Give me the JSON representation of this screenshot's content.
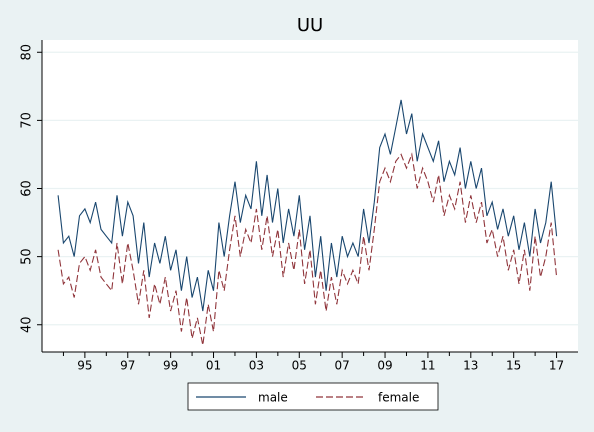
{
  "chart_data": {
    "type": "line",
    "title": "UU",
    "x": [
      1993.75,
      1994,
      1994.25,
      1994.5,
      1994.75,
      1995,
      1995.25,
      1995.5,
      1995.75,
      1996,
      1996.25,
      1996.5,
      1996.75,
      1997,
      1997.25,
      1997.5,
      1997.75,
      1998,
      1998.25,
      1998.5,
      1998.75,
      1999,
      1999.25,
      1999.5,
      1999.75,
      2000,
      2000.25,
      2000.5,
      2000.75,
      2001,
      2001.25,
      2001.5,
      2001.75,
      2002,
      2002.25,
      2002.5,
      2002.75,
      2003,
      2003.25,
      2003.5,
      2003.75,
      2004,
      2004.25,
      2004.5,
      2004.75,
      2005,
      2005.25,
      2005.5,
      2005.75,
      2006,
      2006.25,
      2006.5,
      2006.75,
      2007,
      2007.25,
      2007.5,
      2007.75,
      2008,
      2008.25,
      2008.5,
      2008.75,
      2009,
      2009.25,
      2009.5,
      2009.75,
      2010,
      2010.25,
      2010.5,
      2010.75,
      2011,
      2011.25,
      2011.5,
      2011.75,
      2012,
      2012.25,
      2012.5,
      2012.75,
      2013,
      2013.25,
      2013.5,
      2013.75,
      2014,
      2014.25,
      2014.5,
      2014.75,
      2015,
      2015.25,
      2015.5,
      2015.75,
      2016,
      2016.25,
      2016.5,
      2016.75,
      2017
    ],
    "series": [
      {
        "name": "male",
        "color": "#1a476f",
        "dash": false,
        "values": [
          59,
          52,
          53,
          50,
          56,
          57,
          55,
          58,
          54,
          53,
          52,
          59,
          53,
          58,
          56,
          49,
          55,
          47,
          52,
          49,
          53,
          48,
          51,
          45,
          50,
          44,
          47,
          42,
          48,
          45,
          55,
          50,
          56,
          61,
          55,
          59,
          57,
          64,
          56,
          62,
          55,
          60,
          52,
          57,
          53,
          59,
          51,
          56,
          47,
          53,
          45,
          52,
          47,
          53,
          50,
          52,
          50,
          57,
          52,
          58,
          66,
          68,
          65,
          69,
          73,
          68,
          71,
          64,
          68,
          66,
          64,
          67,
          61,
          64,
          62,
          66,
          60,
          64,
          60,
          63,
          56,
          58,
          54,
          57,
          53,
          56,
          51,
          55,
          50,
          57,
          52,
          55,
          61,
          53
        ]
      },
      {
        "name": "female",
        "color": "#90353b",
        "dash": true,
        "values": [
          51,
          46,
          47,
          44,
          49,
          50,
          48,
          51,
          47,
          46,
          45,
          52,
          46,
          52,
          48,
          43,
          48,
          41,
          46,
          43,
          47,
          42,
          45,
          39,
          44,
          38,
          41,
          37,
          43,
          39,
          48,
          45,
          51,
          56,
          50,
          54,
          52,
          57,
          51,
          56,
          50,
          54,
          47,
          52,
          48,
          54,
          46,
          51,
          43,
          48,
          42,
          47,
          43,
          48,
          46,
          48,
          46,
          53,
          48,
          54,
          61,
          63,
          61,
          64,
          65,
          63,
          65,
          60,
          63,
          61,
          58,
          62,
          56,
          59,
          57,
          61,
          55,
          59,
          55,
          58,
          52,
          54,
          50,
          53,
          48,
          51,
          46,
          51,
          45,
          53,
          47,
          50,
          55,
          47
        ]
      }
    ],
    "xlim": [
      1993,
      2018
    ],
    "xticks": [
      {
        "value": 1995,
        "label": "95"
      },
      {
        "value": 1997,
        "label": "97"
      },
      {
        "value": 1999,
        "label": "99"
      },
      {
        "value": 2001,
        "label": "01"
      },
      {
        "value": 2003,
        "label": "03"
      },
      {
        "value": 2005,
        "label": "05"
      },
      {
        "value": 2007,
        "label": "07"
      },
      {
        "value": 2009,
        "label": "09"
      },
      {
        "value": 2011,
        "label": "11"
      },
      {
        "value": 2013,
        "label": "13"
      },
      {
        "value": 2015,
        "label": "15"
      },
      {
        "value": 2017,
        "label": "17"
      }
    ],
    "xminorticks": [
      1994,
      1996,
      1998,
      2000,
      2002,
      2004,
      2006,
      2008,
      2010,
      2012,
      2014,
      2016
    ],
    "ylim": [
      36,
      81.8
    ],
    "yticks": [
      40,
      50,
      60,
      70,
      80
    ],
    "grid": true,
    "legend": "bottom"
  }
}
